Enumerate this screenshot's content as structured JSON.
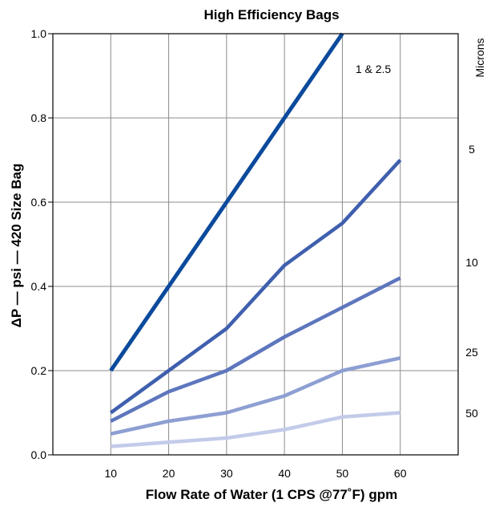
{
  "chart_data": {
    "type": "line",
    "title": "High Efficiency Bags",
    "xlabel": "Flow Rate of Water (1 CPS @77˚F) gpm",
    "ylabel": "ΔP — psi — 420 Size Bag",
    "right_axis_label": "Microns",
    "x": [
      10,
      20,
      30,
      40,
      50,
      60
    ],
    "xlim": [
      0,
      70
    ],
    "ylim": [
      0,
      1.0
    ],
    "xticks": [
      "10",
      "20",
      "30",
      "40",
      "50",
      "60"
    ],
    "yticks": [
      "0.0",
      "0.2",
      "0.4",
      "0.6",
      "0.8",
      "1.0"
    ],
    "grid": true,
    "series": [
      {
        "name": "1 & 2.5",
        "color": "#0b4a9c",
        "width": 5,
        "points": [
          [
            10,
            0.2
          ],
          [
            20,
            0.4
          ],
          [
            30,
            0.6
          ],
          [
            40,
            0.8
          ],
          [
            50,
            1.0
          ]
        ]
      },
      {
        "name": "5",
        "color": "#3f5fae",
        "width": 4.5,
        "points": [
          [
            10,
            0.1
          ],
          [
            20,
            0.2
          ],
          [
            30,
            0.3
          ],
          [
            40,
            0.45
          ],
          [
            50,
            0.55
          ],
          [
            60,
            0.7
          ]
        ]
      },
      {
        "name": "10",
        "color": "#5d76bd",
        "width": 4.5,
        "points": [
          [
            10,
            0.08
          ],
          [
            20,
            0.15
          ],
          [
            30,
            0.2
          ],
          [
            40,
            0.28
          ],
          [
            50,
            0.35
          ],
          [
            60,
            0.42
          ]
        ]
      },
      {
        "name": "25",
        "color": "#8d9fd2",
        "width": 4.5,
        "points": [
          [
            10,
            0.05
          ],
          [
            20,
            0.08
          ],
          [
            30,
            0.1
          ],
          [
            40,
            0.14
          ],
          [
            50,
            0.2
          ],
          [
            60,
            0.23
          ]
        ]
      },
      {
        "name": "50",
        "color": "#c3cbea",
        "width": 4.5,
        "points": [
          [
            10,
            0.02
          ],
          [
            20,
            0.03
          ],
          [
            30,
            0.04
          ],
          [
            40,
            0.06
          ],
          [
            50,
            0.09
          ],
          [
            60,
            0.1
          ]
        ]
      }
    ]
  }
}
